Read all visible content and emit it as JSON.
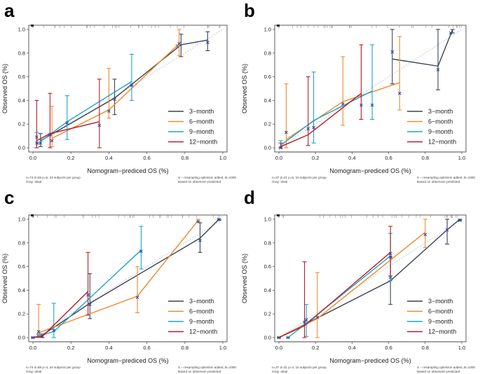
{
  "colors": {
    "3-month": "#3b4454",
    "6-month": "#ee8a2c",
    "9-month": "#1ea3cc",
    "12-month": "#b81e2a",
    "ideal": "#c7c7c7",
    "marker": "#2b4da8"
  },
  "chart_data": [
    {
      "panel": "a",
      "type": "line",
      "xlabel": "Nomogram−prediced OS (%)",
      "ylabel": "Observed OS (%)",
      "xlim": [
        0,
        1
      ],
      "ylim": [
        0,
        1
      ],
      "x_ticks": [
        "0.0",
        "0.2",
        "0.4",
        "0.6",
        "0.8",
        "1.0"
      ],
      "y_ticks": [
        "0.0",
        "0.2",
        "0.4",
        "0.6",
        "0.8",
        "1.0"
      ],
      "legend": [
        "3−month",
        "6−month",
        "9−month",
        "12−month"
      ],
      "note_left": [
        "n=74 d=59 p=5, 24 subjects per group",
        "Gray: ideal"
      ],
      "note_right": [
        "X − resampling optimism added, B=1000",
        "Based on observed−predicted"
      ],
      "series": [
        {
          "name": "3-month",
          "x": [
            0.04,
            0.43,
            0.78,
            0.92
          ],
          "y": [
            0.06,
            0.42,
            0.87,
            0.91
          ],
          "lo": [
            0.01,
            0.28,
            0.77,
            0.82
          ],
          "hi": [
            0.12,
            0.58,
            0.96,
            0.98
          ],
          "xcorr": [
            0.04,
            0.43,
            0.76,
            0.92
          ],
          "ycorr": [
            0.04,
            0.41,
            0.86,
            0.89
          ]
        },
        {
          "name": "6-month",
          "x": [
            0.1,
            0.4,
            0.77
          ],
          "y": [
            0.08,
            0.32,
            0.88
          ],
          "lo": [
            0.01,
            0.25,
            0.78
          ],
          "hi": [
            0.35,
            0.67,
            1.0
          ],
          "xcorr": [
            0.1,
            0.4,
            0.77
          ],
          "ycorr": [
            0.06,
            0.31,
            0.88
          ]
        },
        {
          "name": "9-month",
          "x": [
            0.02,
            0.18,
            0.52
          ],
          "y": [
            0.03,
            0.22,
            0.56
          ],
          "lo": [
            0.0,
            0.07,
            0.4
          ],
          "hi": [
            0.13,
            0.44,
            0.79
          ],
          "xcorr": [
            0.02,
            0.18,
            0.52
          ],
          "ycorr": [
            0.09,
            0.21,
            0.53
          ]
        },
        {
          "name": "12-month",
          "x": [
            0.02,
            0.09,
            0.35
          ],
          "y": [
            0.06,
            0.12,
            0.22
          ],
          "lo": [
            0.0,
            0.0,
            0.0
          ],
          "hi": [
            0.4,
            0.46,
            0.58
          ],
          "xcorr": [
            0.02,
            0.09,
            0.35
          ],
          "ycorr": [
            0.04,
            0.11,
            0.19
          ]
        }
      ]
    },
    {
      "panel": "b",
      "type": "line",
      "xlabel": "Nomogram−prediced OS (%)",
      "ylabel": "Observed OS (%)",
      "xlim": [
        0,
        1
      ],
      "ylim": [
        0,
        1
      ],
      "x_ticks": [
        "0.0",
        "0.2",
        "0.4",
        "0.6",
        "0.8",
        "1.0"
      ],
      "y_ticks": [
        "0.0",
        "0.2",
        "0.4",
        "0.6",
        "0.8",
        "1.0"
      ],
      "legend": [
        "3−month",
        "6−month",
        "9−month",
        "12−month"
      ],
      "note_left": [
        "n=37 d=31 p=5, 15 subjects per group",
        "Gray: ideal"
      ],
      "note_right": [
        "X − resampling optimism added, B=1000",
        "Based on observed−predicted"
      ],
      "series": [
        {
          "name": "3-month",
          "x": [
            0.62,
            0.87,
            0.95
          ],
          "y": [
            0.75,
            0.69,
            1.0
          ],
          "lo": [
            0.54,
            0.49,
            0.97
          ],
          "hi": [
            1.0,
            1.0,
            1.0
          ],
          "xcorr": [
            0.62,
            0.87,
            0.94
          ],
          "ycorr": [
            0.81,
            0.66,
            0.97
          ]
        },
        {
          "name": "6-month",
          "x": [
            0.04,
            0.35,
            0.66
          ],
          "y": [
            0.07,
            0.39,
            0.55
          ],
          "lo": [
            0.0,
            0.19,
            0.32
          ],
          "hi": [
            0.54,
            0.77,
            0.94
          ],
          "xcorr": [
            0.04,
            0.35,
            0.66
          ],
          "ycorr": [
            0.13,
            0.37,
            0.46
          ]
        },
        {
          "name": "9-month",
          "x": [
            0.01,
            0.19,
            0.51
          ],
          "y": [
            0.02,
            0.23,
            0.48
          ],
          "lo": [
            0.0,
            0.04,
            0.24
          ],
          "hi": [
            0.06,
            0.64,
            0.87
          ],
          "xcorr": [
            0.01,
            0.19,
            0.51
          ],
          "ycorr": [
            0.0,
            0.17,
            0.36
          ]
        },
        {
          "name": "12-month",
          "x": [
            0.01,
            0.16,
            0.45
          ],
          "y": [
            0.01,
            0.11,
            0.46
          ],
          "lo": [
            0.0,
            0.02,
            0.24
          ],
          "hi": [
            0.04,
            0.6,
            0.87
          ],
          "xcorr": [
            0.01,
            0.16,
            0.45
          ],
          "ycorr": [
            0.0,
            0.16,
            0.36
          ]
        }
      ]
    },
    {
      "panel": "c",
      "type": "line",
      "xlabel": "Nomogram−prediced OS (%)",
      "ylabel": "Observed OS (%)",
      "xlim": [
        0,
        1
      ],
      "ylim": [
        0,
        1
      ],
      "x_ticks": [
        "0.0",
        "0.2",
        "0.4",
        "0.6",
        "0.8",
        "1.0"
      ],
      "y_ticks": [
        "0.0",
        "0.2",
        "0.4",
        "0.6",
        "0.8",
        "1.0"
      ],
      "legend": [
        "3−month",
        "6−month",
        "9−month",
        "12−month"
      ],
      "note_left": [
        "n=74 d=59 p=4, 24 subjects per group",
        "Gray: ideal"
      ],
      "note_right": [
        "X − resampling optimism added, B=1000",
        "Based on observed−predicted"
      ],
      "series": [
        {
          "name": "3-month",
          "x": [
            0.03,
            0.3,
            0.88,
            0.98
          ],
          "y": [
            0.0,
            0.29,
            0.84,
            1.0
          ],
          "lo": [
            0.0,
            0.16,
            0.72,
            0.99
          ],
          "hi": [
            0.03,
            0.54,
            0.97,
            1.0
          ],
          "xcorr": [
            0.03,
            0.3,
            0.88,
            0.98
          ],
          "ycorr": [
            0.01,
            0.28,
            0.82,
            1.0
          ]
        },
        {
          "name": "6-month",
          "x": [
            0.03,
            0.55,
            0.87
          ],
          "y": [
            0.04,
            0.35,
            0.99
          ],
          "lo": [
            0.0,
            0.21,
            0.98
          ],
          "hi": [
            0.28,
            0.6,
            1.0
          ],
          "xcorr": [
            0.03,
            0.55,
            0.87
          ],
          "ycorr": [
            0.05,
            0.34,
            0.98
          ]
        },
        {
          "name": "9-month",
          "x": [
            0.0,
            0.11,
            0.57
          ],
          "y": [
            0.0,
            0.05,
            0.74
          ],
          "lo": [
            0.0,
            0.0,
            0.58
          ],
          "hi": [
            0.0,
            0.29,
            0.94
          ],
          "xcorr": [
            0.0,
            0.11,
            0.57
          ],
          "ycorr": [
            0.0,
            0.06,
            0.73
          ]
        },
        {
          "name": "12-month",
          "x": [
            0.0,
            0.05,
            0.29
          ],
          "y": [
            0.0,
            0.01,
            0.39
          ],
          "lo": [
            0.0,
            0.0,
            0.19
          ],
          "hi": [
            0.0,
            0.03,
            0.72
          ],
          "xcorr": [
            0.0,
            0.05,
            0.29
          ],
          "ycorr": [
            0.0,
            0.01,
            0.36
          ]
        }
      ]
    },
    {
      "panel": "d",
      "type": "line",
      "xlabel": "Nomogram−prediced OS (%)",
      "ylabel": "Observed OS (%)",
      "xlim": [
        0,
        1
      ],
      "ylim": [
        0,
        1
      ],
      "x_ticks": [
        "0.0",
        "0.2",
        "0.4",
        "0.6",
        "0.8",
        "1.0"
      ],
      "y_ticks": [
        "0.0",
        "0.2",
        "0.4",
        "0.6",
        "0.8",
        "1.0"
      ],
      "legend": [
        "3−month",
        "6−month",
        "9−month",
        "12−month"
      ],
      "note_left": [
        "n=37 d=31 p=4, 15 subjects per group",
        "Gray: ideal"
      ],
      "note_right": [
        "X − resampling optimism added, B=1000",
        "Based on observed−predicted"
      ],
      "series": [
        {
          "name": "3-month",
          "x": [
            0.0,
            0.61,
            0.92,
            0.99
          ],
          "y": [
            0.0,
            0.48,
            0.91,
            1.0
          ],
          "lo": [
            0.0,
            0.28,
            0.79,
            0.99
          ],
          "hi": [
            0.0,
            0.68,
            1.0,
            1.0
          ],
          "xcorr": [
            0.0,
            0.61,
            0.92,
            0.99
          ],
          "ycorr": [
            0.0,
            0.51,
            0.91,
            0.99
          ]
        },
        {
          "name": "6-month",
          "x": [
            0.0,
            0.21,
            0.8
          ],
          "y": [
            0.0,
            0.16,
            0.89
          ],
          "lo": [
            0.0,
            0.0,
            0.76
          ],
          "hi": [
            0.0,
            0.55,
            1.0
          ],
          "xcorr": [
            0.0,
            0.21,
            0.8
          ],
          "ycorr": [
            0.0,
            0.17,
            0.87
          ]
        },
        {
          "name": "9-month",
          "x": [
            0.05,
            0.15,
            0.61
          ],
          "y": [
            0.0,
            0.12,
            0.69
          ],
          "lo": [
            0.0,
            0.01,
            0.48
          ],
          "hi": [
            0.0,
            0.28,
            0.88
          ],
          "xcorr": [
            0.05,
            0.15,
            0.61
          ],
          "ycorr": [
            0.0,
            0.15,
            0.68
          ]
        },
        {
          "name": "12-month",
          "x": [
            0.0,
            0.14,
            0.61
          ],
          "y": [
            0.0,
            0.1,
            0.72
          ],
          "lo": [
            0.0,
            0.0,
            0.52
          ],
          "hi": [
            0.0,
            0.64,
            0.94
          ],
          "xcorr": [
            0.0,
            0.14,
            0.61
          ],
          "ycorr": [
            0.0,
            0.13,
            0.71
          ]
        }
      ]
    }
  ]
}
